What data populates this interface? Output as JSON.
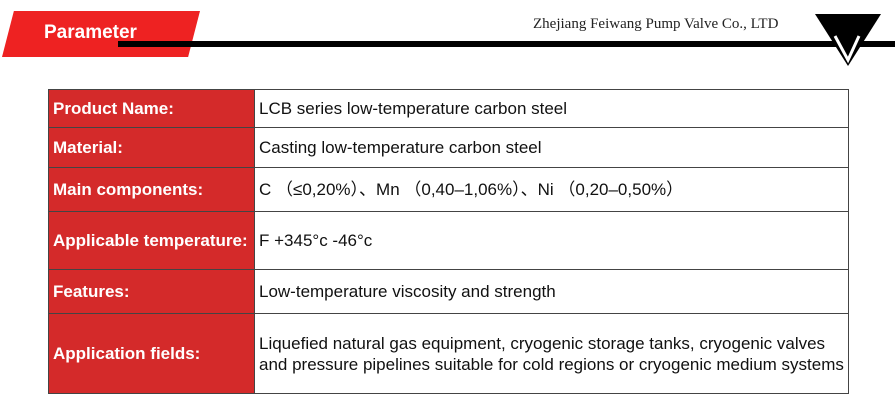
{
  "header": {
    "title": "Parameter",
    "company": "Zhejiang Feiwang Pump Valve Co., LTD",
    "logo_icon": "v-triangle-logo",
    "accent": "#ee2222"
  },
  "table": {
    "rows": [
      {
        "label": "Product Name:",
        "value": "LCB series low-temperature carbon steel"
      },
      {
        "label": "Material:",
        "value": "Casting low-temperature carbon steel"
      },
      {
        "label": "Main components:",
        "value": "C （≤0,20%）、Mn （0,40–1,06%）、Ni （0,20–0,50%）"
      },
      {
        "label": "Applicable temperature:",
        "value": "F +345°c -46°c"
      },
      {
        "label": "Features:",
        "value": "Low-temperature viscosity and strength"
      },
      {
        "label": "Application fields:",
        "value": "Liquefied natural gas equipment, cryogenic storage tanks, cryogenic valves and pressure pipelines suitable for cold regions or cryogenic medium systems"
      }
    ]
  }
}
